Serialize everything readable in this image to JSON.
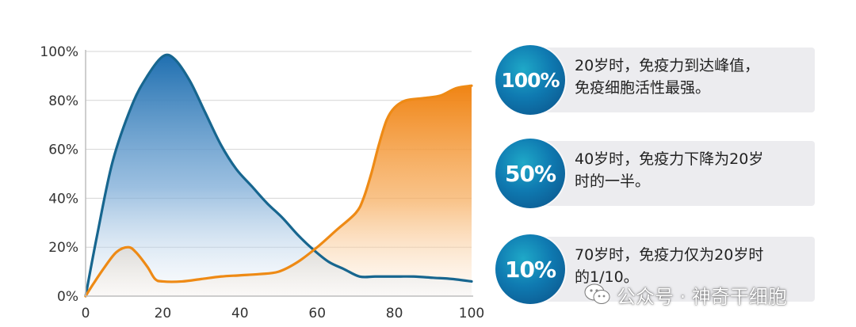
{
  "chart_data": {
    "type": "area",
    "x": [
      0,
      20,
      40,
      60,
      80,
      100
    ],
    "xlim": [
      0,
      100
    ],
    "ylim": [
      0,
      100
    ],
    "y_ticks": [
      "0%",
      "20%",
      "40%",
      "60%",
      "80%",
      "100%"
    ],
    "x_ticks": [
      "0",
      "20",
      "40",
      "60",
      "80",
      "100"
    ],
    "grid": true,
    "series": [
      {
        "color": "#17668f",
        "fill_top": "#2a77b6",
        "points": [
          [
            0,
            0
          ],
          [
            3,
            25
          ],
          [
            7,
            55
          ],
          [
            12,
            78
          ],
          [
            16,
            90
          ],
          [
            20,
            98
          ],
          [
            23,
            97
          ],
          [
            27,
            88
          ],
          [
            31,
            75
          ],
          [
            35,
            62
          ],
          [
            39,
            52
          ],
          [
            43,
            45
          ],
          [
            47,
            38
          ],
          [
            51,
            32
          ],
          [
            55,
            25
          ],
          [
            59,
            19
          ],
          [
            63,
            14
          ],
          [
            67,
            11
          ],
          [
            71,
            8
          ],
          [
            75,
            8
          ],
          [
            80,
            8
          ],
          [
            85,
            8
          ],
          [
            90,
            7.5
          ],
          [
            95,
            7
          ],
          [
            100,
            6
          ]
        ]
      },
      {
        "color": "#ee8a15",
        "fill_top": "#f08a1c",
        "points": [
          [
            0,
            0
          ],
          [
            2,
            5
          ],
          [
            5,
            12
          ],
          [
            8,
            18
          ],
          [
            11,
            20
          ],
          [
            13,
            18
          ],
          [
            16,
            12
          ],
          [
            18,
            7
          ],
          [
            20,
            6
          ],
          [
            25,
            6
          ],
          [
            30,
            7
          ],
          [
            35,
            8
          ],
          [
            40,
            8.5
          ],
          [
            45,
            9
          ],
          [
            50,
            10
          ],
          [
            55,
            14
          ],
          [
            60,
            20
          ],
          [
            65,
            27
          ],
          [
            70,
            34
          ],
          [
            72,
            40
          ],
          [
            74,
            50
          ],
          [
            76,
            62
          ],
          [
            78,
            72
          ],
          [
            80,
            77
          ],
          [
            83,
            80
          ],
          [
            88,
            81
          ],
          [
            92,
            82
          ],
          [
            96,
            85
          ],
          [
            100,
            86
          ]
        ]
      }
    ]
  },
  "cards": [
    {
      "badge": "100%",
      "lines": [
        "20岁时，免疫力到达峰值，",
        "免疫细胞活性最强。"
      ]
    },
    {
      "badge": "50%",
      "lines": [
        "40岁时，免疫力下降为20岁",
        "时的一半。"
      ]
    },
    {
      "badge": "10%",
      "lines": [
        "70岁时，免疫力仅为20岁时",
        "的1/10。"
      ]
    }
  ],
  "watermark": {
    "text": "公众号 · 神奇干细胞",
    "icon": "wechat-icon"
  }
}
